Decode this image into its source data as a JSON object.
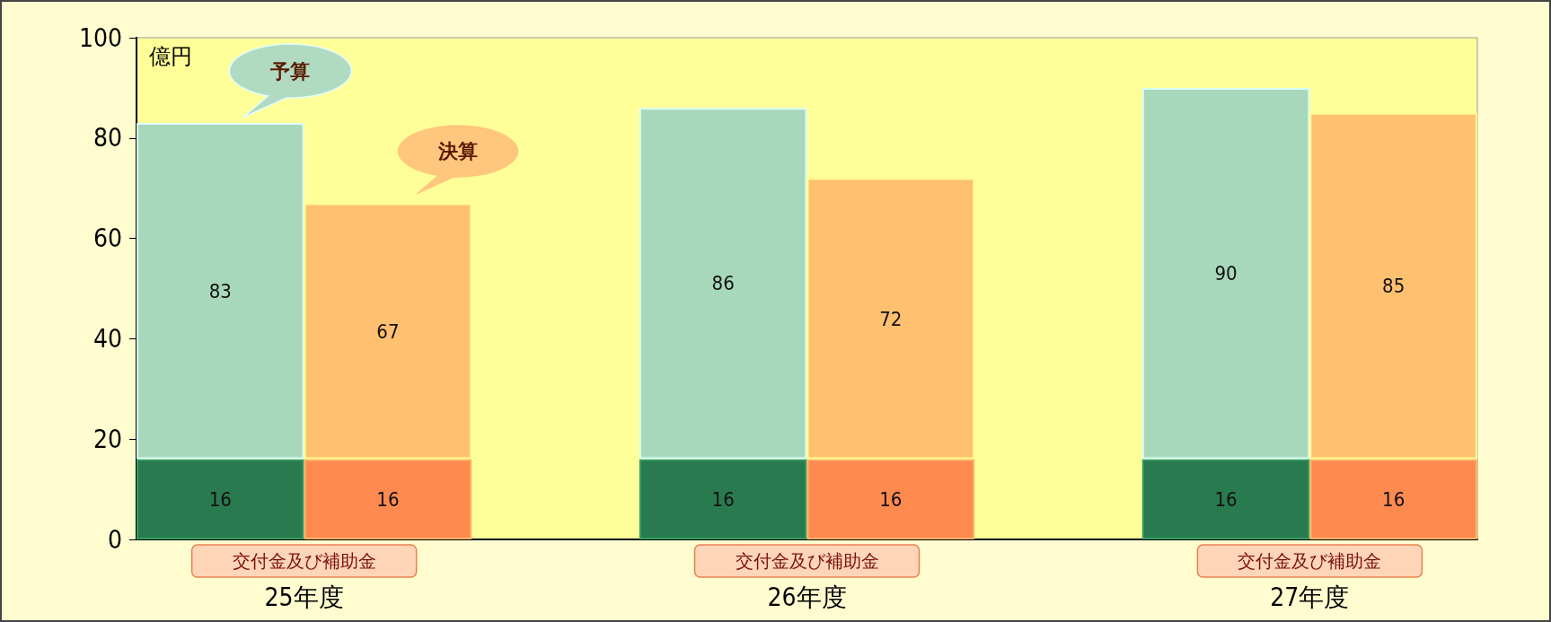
{
  "chart_data": {
    "type": "bar",
    "stacked": true,
    "ylabel": "億円",
    "categories": [
      "25年度",
      null,
      null,
      "26年度",
      null,
      null,
      "27年度",
      null
    ],
    "ylim": [
      0,
      100
    ],
    "yticks": [
      0,
      20,
      40,
      60,
      80,
      100
    ],
    "grid": false,
    "legend": false,
    "annotations": [
      "予算",
      "決算"
    ],
    "totals": [
      "83",
      "67",
      null,
      "86",
      "72",
      null,
      "90",
      "85"
    ],
    "series": [
      {
        "name": "交付金及び補助金",
        "colors": [
          "#2a7a50",
          "#ff8a50",
          null,
          "#2a7a50",
          "#ff8a50",
          null,
          "#2a7a50",
          "#ff8a50"
        ],
        "values": [
          16,
          16,
          null,
          16,
          16,
          null,
          16,
          16
        ],
        "value_labels": [
          "16",
          "16",
          null,
          "16",
          "16",
          null,
          "16",
          "16"
        ]
      },
      {
        "colors": [
          "#a8d8bc",
          "#ffc070",
          null,
          "#a8d8bc",
          "#ffc070",
          null,
          "#a8d8bc",
          "#ffc070"
        ],
        "values": [
          67,
          51,
          null,
          70,
          56,
          null,
          74,
          69
        ]
      }
    ]
  }
}
